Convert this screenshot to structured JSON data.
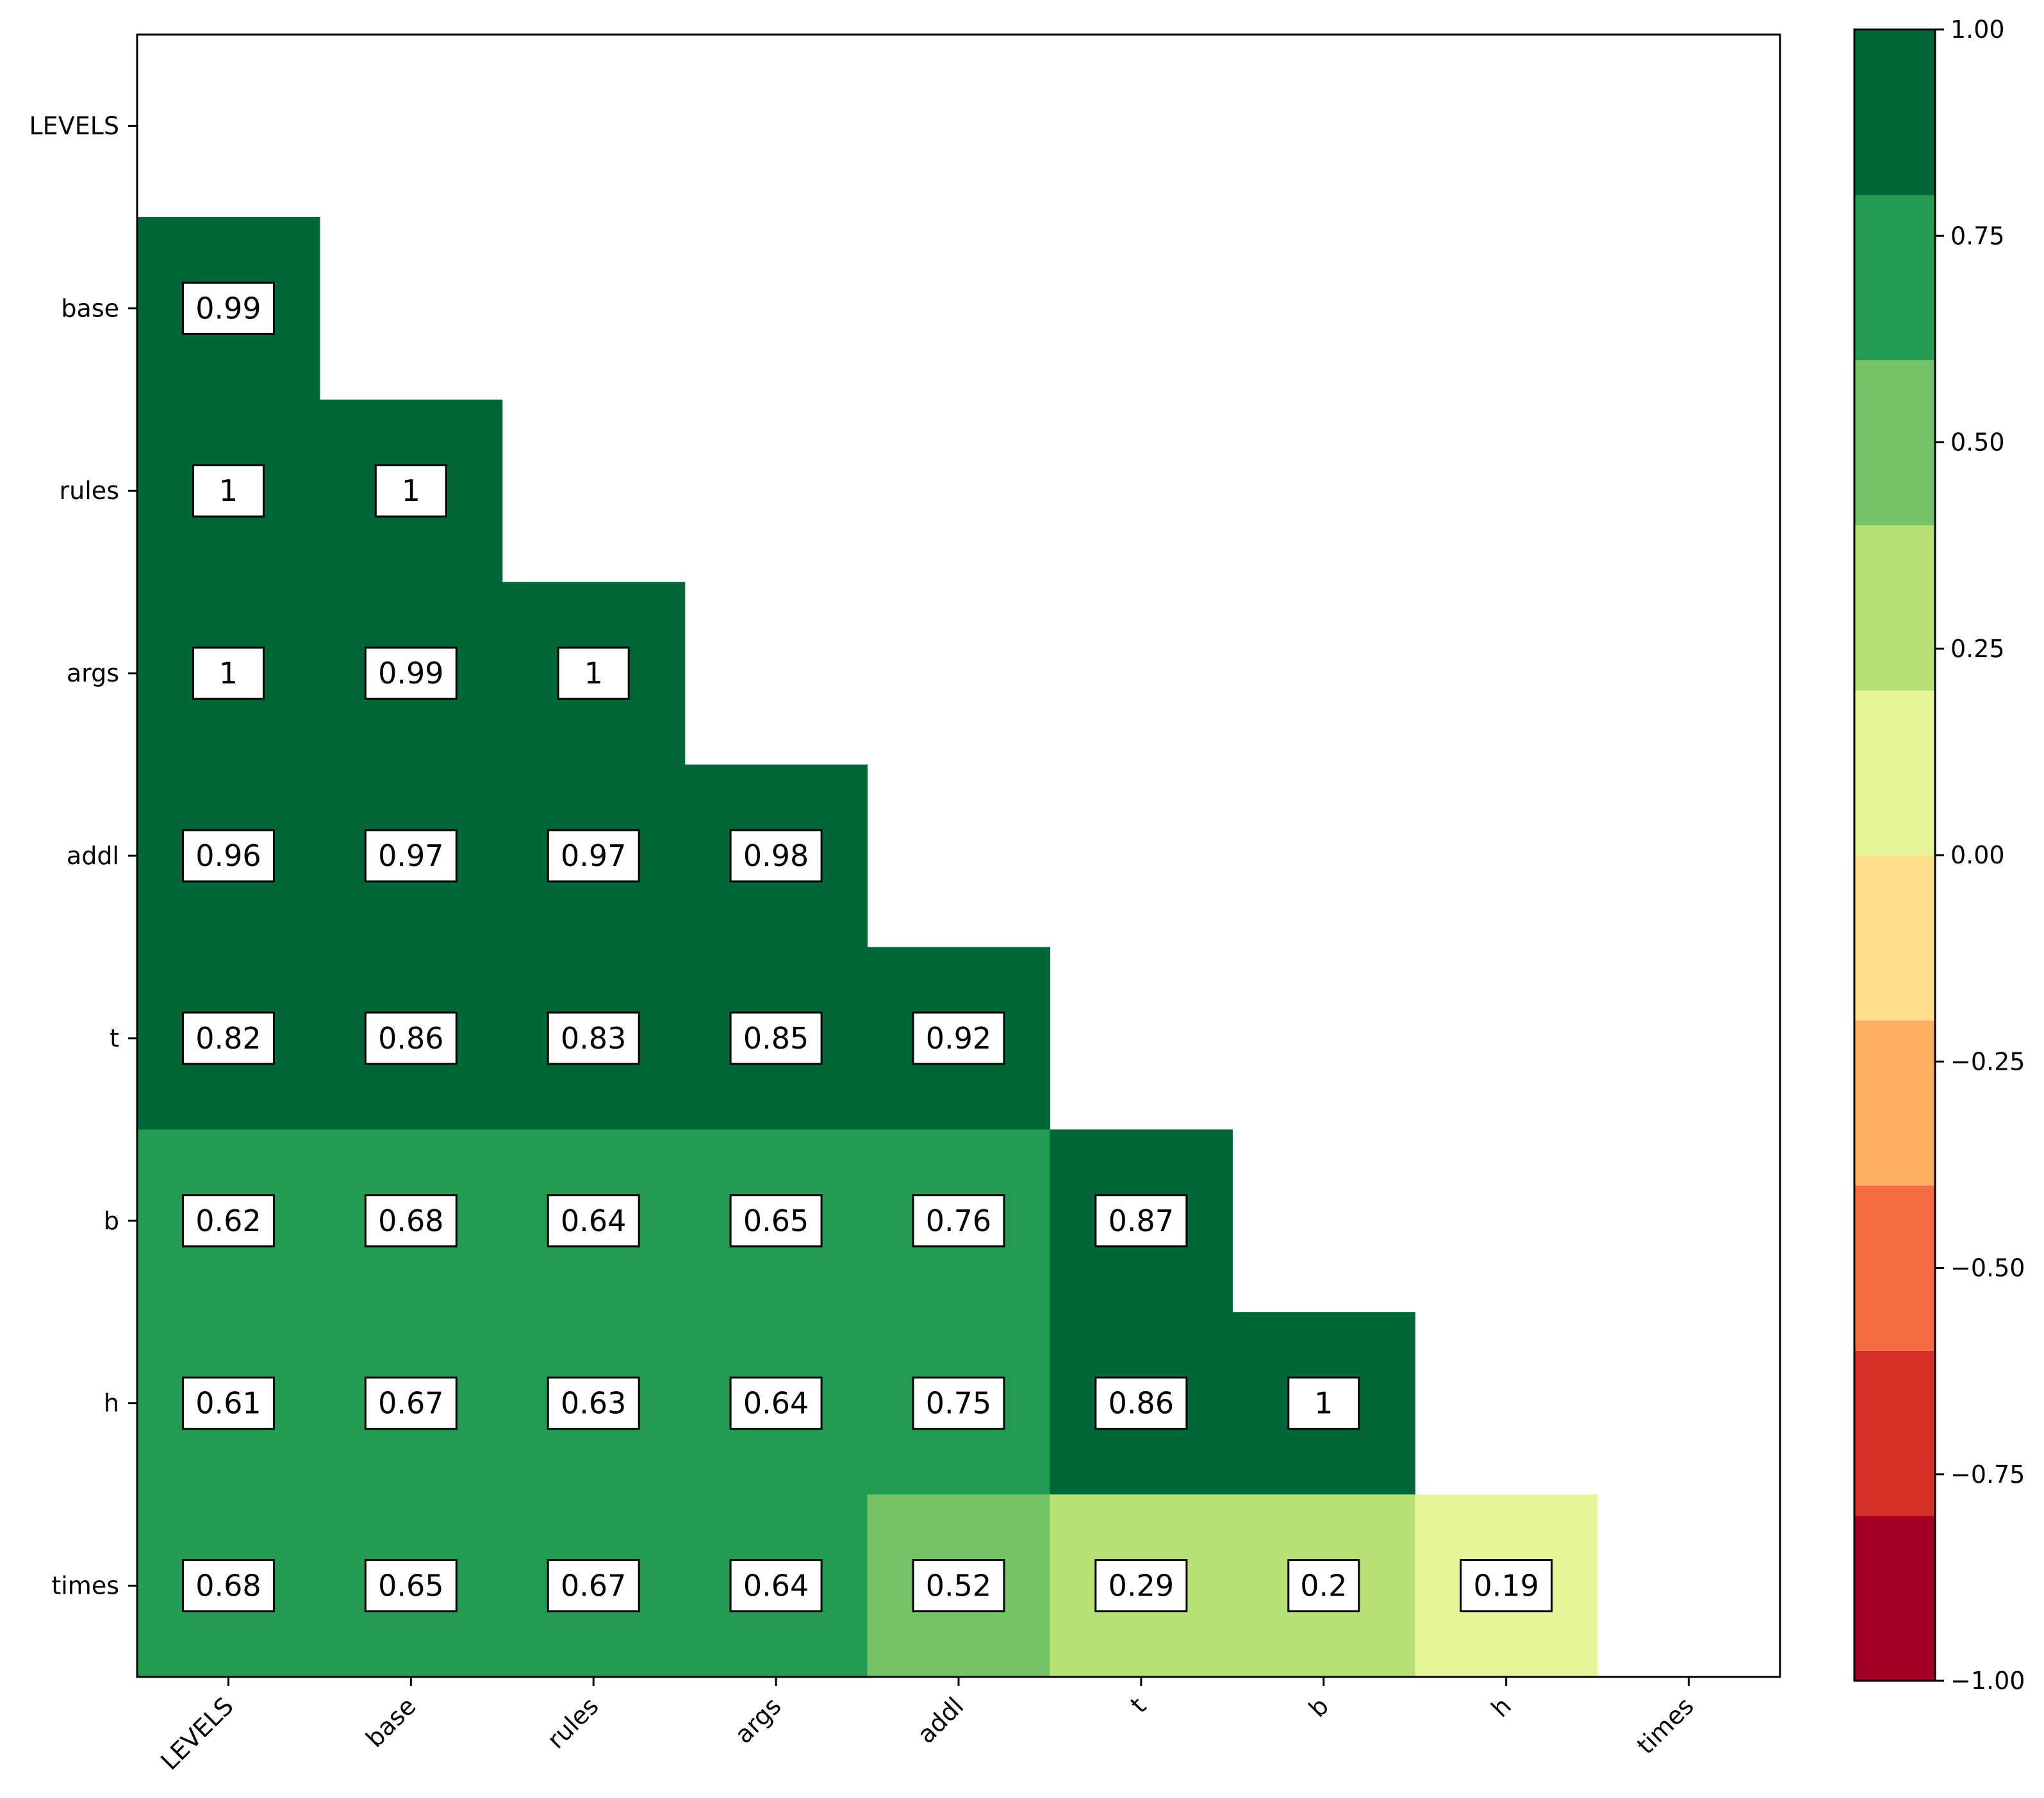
{
  "chart_data": {
    "type": "heatmap",
    "title": "",
    "xlabel": "",
    "ylabel": "",
    "variables": [
      "LEVELS",
      "base",
      "rules",
      "args",
      "addl",
      "t",
      "b",
      "h",
      "times"
    ],
    "matrix": [
      [
        null,
        null,
        null,
        null,
        null,
        null,
        null,
        null,
        null
      ],
      [
        0.99,
        null,
        null,
        null,
        null,
        null,
        null,
        null,
        null
      ],
      [
        1.0,
        1.0,
        null,
        null,
        null,
        null,
        null,
        null,
        null
      ],
      [
        1.0,
        0.99,
        1.0,
        null,
        null,
        null,
        null,
        null,
        null
      ],
      [
        0.96,
        0.97,
        0.97,
        0.98,
        null,
        null,
        null,
        null,
        null
      ],
      [
        0.82,
        0.86,
        0.83,
        0.85,
        0.92,
        null,
        null,
        null,
        null
      ],
      [
        0.62,
        0.68,
        0.64,
        0.65,
        0.76,
        0.87,
        null,
        null,
        null
      ],
      [
        0.61,
        0.67,
        0.63,
        0.64,
        0.75,
        0.86,
        1.0,
        null,
        null
      ],
      [
        0.68,
        0.65,
        0.67,
        0.64,
        0.52,
        0.29,
        0.2,
        0.19,
        null
      ]
    ],
    "mask": "upper-triangle-including-diagonal",
    "colorbar": {
      "range": [
        -1.0,
        1.0
      ],
      "ticks": [
        -1.0,
        -0.75,
        -0.5,
        -0.25,
        0.0,
        0.25,
        0.5,
        0.75,
        1.0
      ],
      "tick_labels": [
        "−1.00",
        "−0.75",
        "−0.50",
        "−0.25",
        "0.00",
        "0.25",
        "0.50",
        "0.75",
        "1.00"
      ],
      "levels": 10,
      "colormap": "RdYlGn",
      "colors": [
        "#a50026",
        "#d73027",
        "#f46d43",
        "#fdae61",
        "#fee08b",
        "#e6f598",
        "#b7e075",
        "#74c365",
        "#229c52",
        "#006837"
      ]
    },
    "grid": false,
    "legend": "colorbar-right"
  }
}
